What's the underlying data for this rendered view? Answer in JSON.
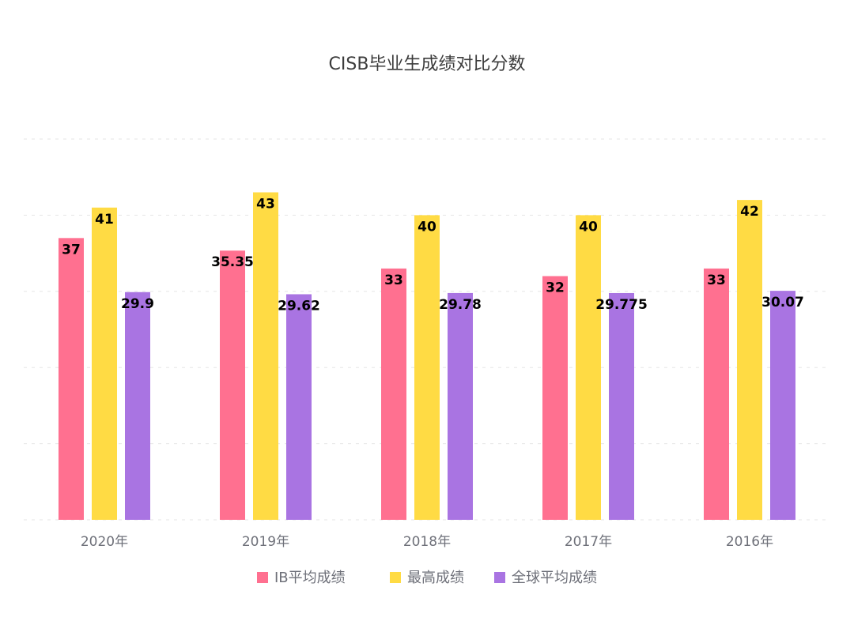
{
  "chart_data": {
    "type": "bar",
    "title": "CISB毕业生成绩对比分数",
    "xlabel": "",
    "ylabel": "",
    "categories": [
      "2020年",
      "2019年",
      "2018年",
      "2017年",
      "2016年"
    ],
    "series": [
      {
        "name": "IB平均成绩",
        "color": "#ff7090",
        "values": [
          37,
          35.35,
          33,
          32,
          33
        ]
      },
      {
        "name": "最高成绩",
        "color": "#ffdb44",
        "values": [
          41,
          43,
          40,
          40,
          42
        ]
      },
      {
        "name": "全球平均成绩",
        "color": "#a974e2",
        "values": [
          29.9,
          29.62,
          29.78,
          29.775,
          30.07
        ]
      }
    ],
    "ylim": [
      0,
      50
    ],
    "y_ticks": [
      0,
      10,
      20,
      30,
      40,
      50
    ],
    "y_tick_labels_visible": false,
    "grid": true,
    "legend_position": "bottom"
  }
}
